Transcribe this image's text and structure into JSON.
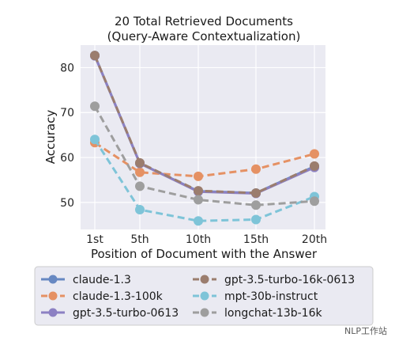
{
  "chart_data": {
    "type": "line",
    "title": "20 Total Retrieved Documents",
    "subtitle": "(Query-Aware Contextualization)",
    "xlabel": "Position of Document with the Answer",
    "ylabel": "Accuracy",
    "categories": [
      "1st",
      "5th",
      "10th",
      "15th",
      "20th"
    ],
    "yticks": [
      50,
      60,
      70,
      80
    ],
    "ylim": [
      44,
      85
    ],
    "grid": true,
    "legend_position": "bottom",
    "series": [
      {
        "name": "claude-1.3",
        "values": [
          82.7,
          58.7,
          52.5,
          52.1,
          58.0
        ],
        "color": "#6788c2",
        "dashed": false
      },
      {
        "name": "claude-1.3-100k",
        "values": [
          63.3,
          56.7,
          55.8,
          57.4,
          60.8
        ],
        "color": "#e59164",
        "dashed": true
      },
      {
        "name": "gpt-3.5-turbo-0613",
        "values": [
          82.6,
          58.7,
          52.4,
          52.0,
          57.8
        ],
        "color": "#8c80c3",
        "dashed": false
      },
      {
        "name": "gpt-3.5-turbo-16k-0613",
        "values": [
          82.7,
          58.8,
          52.6,
          52.1,
          58.1
        ],
        "color": "#9b7d6e",
        "dashed": true
      },
      {
        "name": "mpt-30b-instruct",
        "values": [
          64.0,
          48.4,
          45.9,
          46.2,
          51.3
        ],
        "color": "#7ec4d8",
        "dashed": true
      },
      {
        "name": "longchat-13b-16k",
        "values": [
          71.4,
          53.6,
          50.6,
          49.4,
          50.3
        ],
        "color": "#9e9e9e",
        "dashed": true
      }
    ]
  },
  "watermark": "NLP工作站"
}
